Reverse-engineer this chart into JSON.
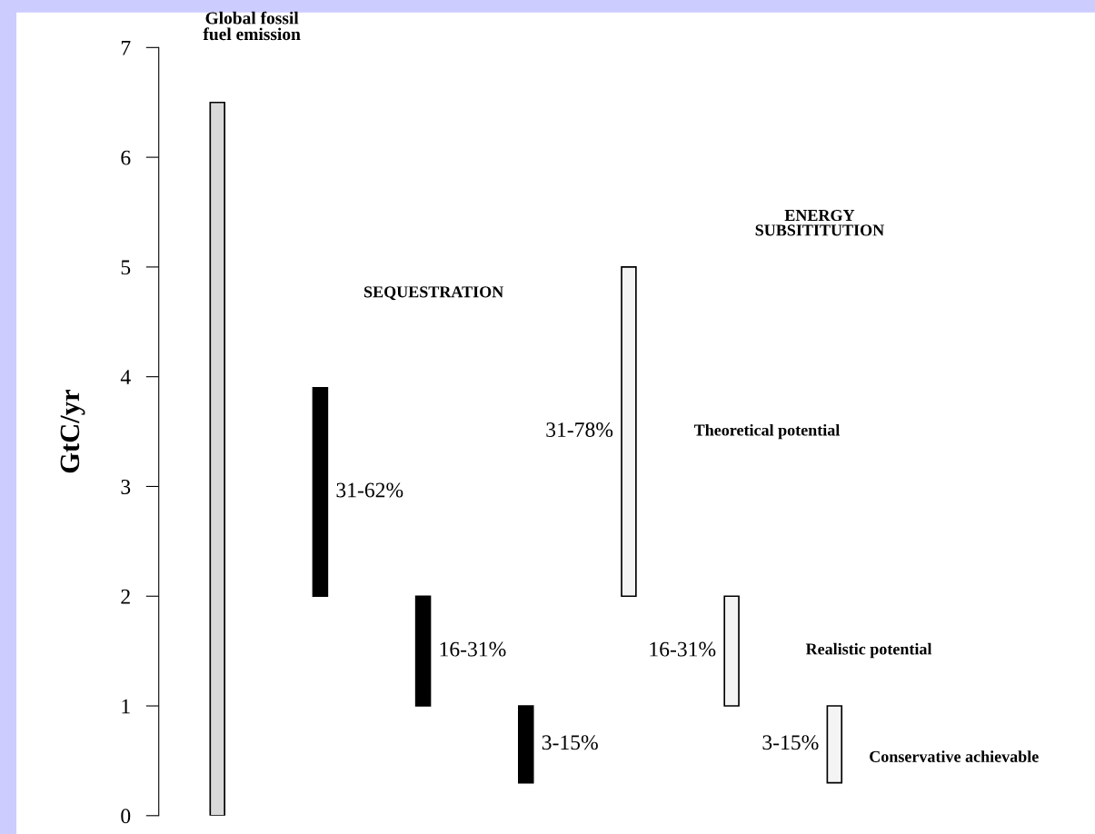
{
  "chart_data": {
    "type": "bar",
    "ylabel": "GtC/yr",
    "categories": [
      null,
      null,
      null,
      null,
      null,
      null,
      null
    ],
    "values": [
      6.5,
      1.9,
      1,
      0.7,
      3,
      1,
      0.7
    ],
    "base": [
      0,
      2,
      1,
      0.3,
      2,
      1,
      0.3
    ],
    "colors": [
      "#d9d9d9",
      "#000000",
      "#000000",
      "#000000",
      "#f4f4f4",
      "#f4f4f4",
      "#f4f4f4"
    ],
    "ylim": [
      0,
      7
    ],
    "yticks": [
      0,
      1,
      2,
      3,
      4,
      5,
      6,
      7
    ],
    "grid": false,
    "legend": false,
    "annotations": [
      "Global fossil\nfuel emission",
      "SEQUESTRATION",
      "ENERGY\nSUBSITITUTION",
      "Theoretical potential",
      "Realistic potential",
      "Conservative achievable",
      "31-62%",
      "16-31%",
      "3-15%",
      "31-78%",
      "16-31%",
      "3-15%"
    ]
  }
}
